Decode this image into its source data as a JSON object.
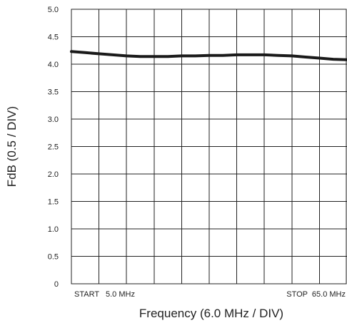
{
  "chart_data": {
    "type": "line",
    "title": "",
    "xlabel": "Frequency (6.0 MHz / DIV)",
    "ylabel": "FdB (0.5 / DIV)",
    "xlim": [
      5.0,
      65.0
    ],
    "ylim": [
      0,
      5.0
    ],
    "x_divisions": 10,
    "y_ticks": [
      "0",
      "0.5",
      "1.0",
      "1.5",
      "2.0",
      "2.5",
      "3.0",
      "3.5",
      "4.0",
      "4.5",
      "5.0"
    ],
    "x_start_label": "START   5.0 MHz",
    "x_stop_label": "STOP  65.0 MHz",
    "grid": true,
    "line_color": "#1a1a1a",
    "series": [
      {
        "x": [
          5.0,
          8.0,
          11.0,
          14.0,
          17.0,
          20.0,
          23.0,
          26.0,
          29.0,
          32.0,
          35.0,
          38.0,
          41.0,
          44.0,
          47.0,
          50.0,
          53.0,
          56.0,
          59.0,
          62.0,
          65.0
        ],
        "values": [
          4.23,
          4.21,
          4.19,
          4.17,
          4.15,
          4.14,
          4.14,
          4.14,
          4.15,
          4.15,
          4.16,
          4.16,
          4.17,
          4.17,
          4.17,
          4.16,
          4.15,
          4.13,
          4.11,
          4.09,
          4.08
        ]
      }
    ]
  }
}
